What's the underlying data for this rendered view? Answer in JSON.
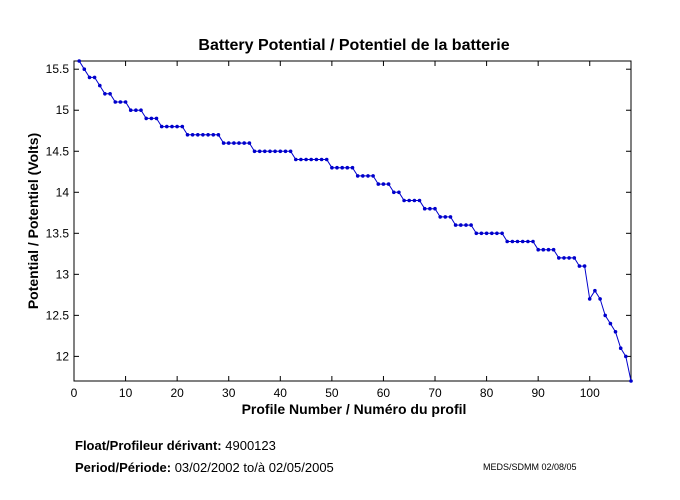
{
  "chart_data": {
    "type": "line",
    "title": "Battery Potential / Potentiel de la batterie",
    "xlabel": "Profile Number / Numéro du profil",
    "ylabel": "Potential / Potentiel (Volts)",
    "xlim": [
      0,
      108
    ],
    "ylim": [
      11.7,
      15.6
    ],
    "x_ticks": [
      0,
      10,
      20,
      30,
      40,
      50,
      60,
      70,
      80,
      90,
      100
    ],
    "y_ticks": [
      12,
      12.5,
      13,
      13.5,
      14,
      14.5,
      15,
      15.5
    ],
    "x_tick_labels": [
      "0",
      "10",
      "20",
      "30",
      "40",
      "50",
      "60",
      "70",
      "80",
      "90",
      "100"
    ],
    "y_tick_labels": [
      "12",
      "12.5",
      "13",
      "13.5",
      "14",
      "14.5",
      "15",
      "15.5"
    ],
    "grid": false,
    "color": "#0000cc",
    "marker": "dot",
    "series": [
      {
        "x": [
          1,
          2,
          3,
          4,
          5,
          6,
          7,
          8,
          9,
          10,
          11,
          12,
          13,
          14,
          15,
          16,
          17,
          18,
          19,
          20,
          21,
          22,
          23,
          24,
          25,
          26,
          27,
          28,
          29,
          30,
          31,
          32,
          33,
          34,
          35,
          36,
          37,
          38,
          39,
          40,
          41,
          42,
          43,
          44,
          45,
          46,
          47,
          48,
          49,
          50,
          51,
          52,
          53,
          54,
          55,
          56,
          57,
          58,
          59,
          60,
          61,
          62,
          63,
          64,
          65,
          66,
          67,
          68,
          69,
          70,
          71,
          72,
          73,
          74,
          75,
          76,
          77,
          78,
          79,
          80,
          81,
          82,
          83,
          84,
          85,
          86,
          87,
          88,
          89,
          90,
          91,
          92,
          93,
          94,
          95,
          96,
          97,
          98,
          99,
          100,
          101,
          102,
          103,
          104,
          105,
          106,
          107,
          108
        ],
        "y": [
          15.6,
          15.5,
          15.4,
          15.4,
          15.3,
          15.2,
          15.2,
          15.1,
          15.1,
          15.1,
          15.0,
          15.0,
          15.0,
          14.9,
          14.9,
          14.9,
          14.8,
          14.8,
          14.8,
          14.8,
          14.8,
          14.7,
          14.7,
          14.7,
          14.7,
          14.7,
          14.7,
          14.7,
          14.6,
          14.6,
          14.6,
          14.6,
          14.6,
          14.6,
          14.5,
          14.5,
          14.5,
          14.5,
          14.5,
          14.5,
          14.5,
          14.5,
          14.4,
          14.4,
          14.4,
          14.4,
          14.4,
          14.4,
          14.4,
          14.3,
          14.3,
          14.3,
          14.3,
          14.3,
          14.2,
          14.2,
          14.2,
          14.2,
          14.1,
          14.1,
          14.1,
          14.0,
          14.0,
          13.9,
          13.9,
          13.9,
          13.9,
          13.8,
          13.8,
          13.8,
          13.7,
          13.7,
          13.7,
          13.6,
          13.6,
          13.6,
          13.6,
          13.5,
          13.5,
          13.5,
          13.5,
          13.5,
          13.5,
          13.4,
          13.4,
          13.4,
          13.4,
          13.4,
          13.4,
          13.3,
          13.3,
          13.3,
          13.3,
          13.2,
          13.2,
          13.2,
          13.2,
          13.1,
          13.1,
          12.7,
          12.8,
          12.7,
          12.5,
          12.4,
          12.3,
          12.1,
          12.0,
          11.7
        ]
      }
    ]
  },
  "footer": {
    "float_label": "Float/Profileur dérivant:",
    "float_value": "4900123",
    "period_label": "Period/Période:",
    "period_start": "03/02/2002",
    "period_sep": "to/à",
    "period_end": "02/05/2005",
    "credit": "MEDS/SDMM  02/08/05"
  }
}
